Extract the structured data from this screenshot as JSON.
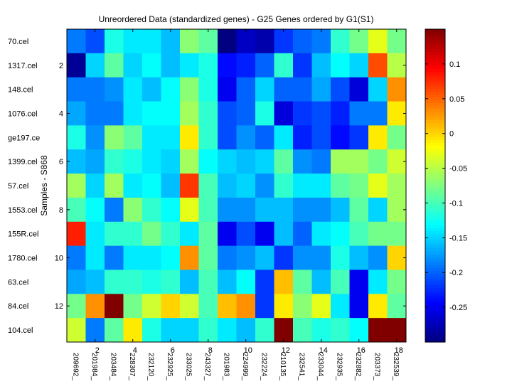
{
  "chart_data": {
    "type": "heatmap",
    "title": "Unreordered Data (standardized genes) - G25 Genes ordered by G1(S1)",
    "ylabel": "Samples - S868",
    "xlabel": "",
    "rows": [
      "70.cel",
      "1317.cel",
      "148.cel",
      "1076.cel",
      "ge197.ce",
      "1399.cel",
      "57.cel",
      "1553.cel",
      "155R.cel",
      "1780.cel",
      "63.cel",
      "84.cel",
      "104.cel"
    ],
    "columns": [
      "209692_",
      "201984_",
      "203484_",
      "228307_",
      "232120_",
      "232925_",
      "233025_",
      "243327_",
      "201983_",
      "224999_",
      "232224_",
      "210135_",
      "232541_",
      "233044_",
      "232935_",
      "232882_",
      "203373_",
      "232539_"
    ],
    "row_index_ticks": [
      2,
      4,
      6,
      8,
      10,
      12
    ],
    "col_index_ticks": [
      2,
      4,
      6,
      8,
      10,
      12,
      14,
      16,
      18
    ],
    "colorbar": {
      "min": -0.3,
      "max": 0.15,
      "ticks": [
        0.1,
        0.05,
        0,
        -0.05,
        -0.1,
        -0.15,
        -0.2,
        -0.25
      ],
      "tick_labels": [
        "0.1",
        "0.05",
        "0",
        "-0.05",
        "-0.1",
        "-0.15",
        "-0.2",
        "-0.25"
      ]
    },
    "values": [
      [
        -0.19,
        -0.21,
        -0.12,
        -0.14,
        -0.14,
        -0.16,
        -0.07,
        -0.09,
        -0.3,
        -0.27,
        -0.28,
        -0.22,
        -0.2,
        -0.19,
        -0.11,
        -0.08,
        -0.03,
        -0.08
      ],
      [
        -0.29,
        -0.15,
        -0.09,
        -0.15,
        -0.13,
        -0.16,
        -0.14,
        -0.12,
        -0.24,
        -0.23,
        -0.2,
        -0.11,
        -0.22,
        -0.16,
        -0.13,
        -0.15,
        0.06,
        -0.05
      ],
      [
        -0.19,
        -0.19,
        -0.18,
        -0.14,
        -0.16,
        -0.13,
        -0.07,
        -0.12,
        -0.25,
        -0.2,
        -0.15,
        -0.2,
        -0.2,
        -0.17,
        -0.21,
        -0.26,
        -0.15,
        0.03
      ],
      [
        -0.17,
        -0.19,
        -0.19,
        -0.14,
        -0.13,
        -0.13,
        -0.06,
        -0.11,
        -0.21,
        -0.2,
        -0.12,
        -0.26,
        -0.22,
        -0.21,
        -0.23,
        -0.19,
        -0.19,
        -0.01
      ],
      [
        -0.12,
        -0.18,
        -0.07,
        -0.09,
        -0.14,
        -0.14,
        -0.01,
        -0.11,
        -0.21,
        -0.18,
        -0.2,
        -0.14,
        -0.23,
        -0.21,
        -0.24,
        -0.22,
        -0.01,
        -0.08
      ],
      [
        -0.16,
        -0.17,
        -0.11,
        -0.12,
        -0.14,
        -0.15,
        -0.06,
        -0.13,
        -0.15,
        -0.16,
        -0.15,
        -0.09,
        -0.18,
        -0.19,
        -0.06,
        -0.06,
        -0.08,
        -0.04
      ],
      [
        -0.06,
        -0.15,
        -0.06,
        -0.14,
        -0.13,
        -0.16,
        0.07,
        -0.1,
        -0.16,
        -0.15,
        -0.18,
        -0.11,
        -0.14,
        -0.14,
        -0.09,
        -0.08,
        -0.03,
        -0.06
      ],
      [
        -0.1,
        -0.13,
        -0.19,
        -0.07,
        -0.11,
        -0.13,
        -0.03,
        -0.1,
        -0.18,
        -0.18,
        -0.16,
        -0.16,
        -0.18,
        -0.18,
        -0.16,
        -0.09,
        -0.15,
        -0.06
      ],
      [
        0.08,
        -0.14,
        -0.11,
        -0.11,
        -0.08,
        -0.11,
        -0.14,
        -0.09,
        -0.25,
        -0.21,
        -0.25,
        -0.16,
        -0.2,
        -0.14,
        -0.13,
        -0.1,
        -0.08,
        -0.08
      ],
      [
        -0.19,
        -0.14,
        -0.19,
        -0.14,
        -0.14,
        -0.13,
        0.03,
        -0.09,
        -0.19,
        -0.18,
        -0.16,
        -0.22,
        -0.18,
        -0.18,
        -0.12,
        -0.16,
        -0.18,
        0.0
      ],
      [
        -0.17,
        -0.16,
        -0.11,
        -0.11,
        -0.12,
        -0.11,
        -0.16,
        -0.1,
        -0.16,
        -0.13,
        -0.22,
        0.01,
        -0.09,
        -0.16,
        -0.1,
        -0.25,
        -0.14,
        -0.08
      ],
      [
        -0.08,
        0.03,
        0.15,
        -0.08,
        -0.04,
        0.0,
        -0.04,
        -0.1,
        0.01,
        0.03,
        -0.22,
        -0.01,
        -0.07,
        -0.03,
        -0.14,
        -0.25,
        -0.01,
        -0.09
      ],
      [
        -0.04,
        -0.19,
        -0.09,
        -0.01,
        -0.12,
        -0.15,
        -0.15,
        -0.11,
        -0.14,
        -0.16,
        -0.11,
        0.15,
        -0.1,
        -0.12,
        -0.11,
        -0.13,
        0.15,
        0.15
      ]
    ]
  }
}
